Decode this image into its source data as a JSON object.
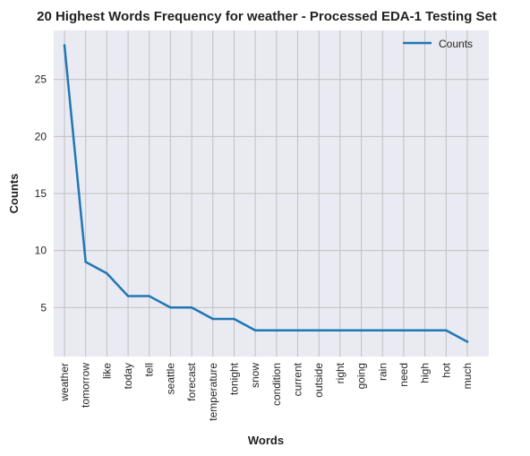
{
  "chart_data": {
    "type": "line",
    "title": "20 Highest Words Frequency for weather - Processed EDA-1 Testing Set",
    "xlabel": "Words",
    "ylabel": "Counts",
    "categories": [
      "weather",
      "tomorrow",
      "like",
      "today",
      "tell",
      "seattle",
      "forecast",
      "temperature",
      "tonight",
      "snow",
      "condition",
      "current",
      "outside",
      "right",
      "going",
      "rain",
      "need",
      "high",
      "hot",
      "much"
    ],
    "series": [
      {
        "name": "Counts",
        "values": [
          28,
          9,
          8,
          6,
          6,
          5,
          5,
          4,
          4,
          3,
          3,
          3,
          3,
          3,
          3,
          3,
          3,
          3,
          3,
          2
        ]
      }
    ],
    "yticks": [
      5,
      10,
      15,
      20,
      25
    ],
    "ylim": [
      0.7,
      29.3
    ],
    "grid": true,
    "legend_position": "top-right",
    "colors": {
      "line": "#1f77b4",
      "plot_bg": "#eaeaf2",
      "grid": "#c0c0c0"
    }
  }
}
